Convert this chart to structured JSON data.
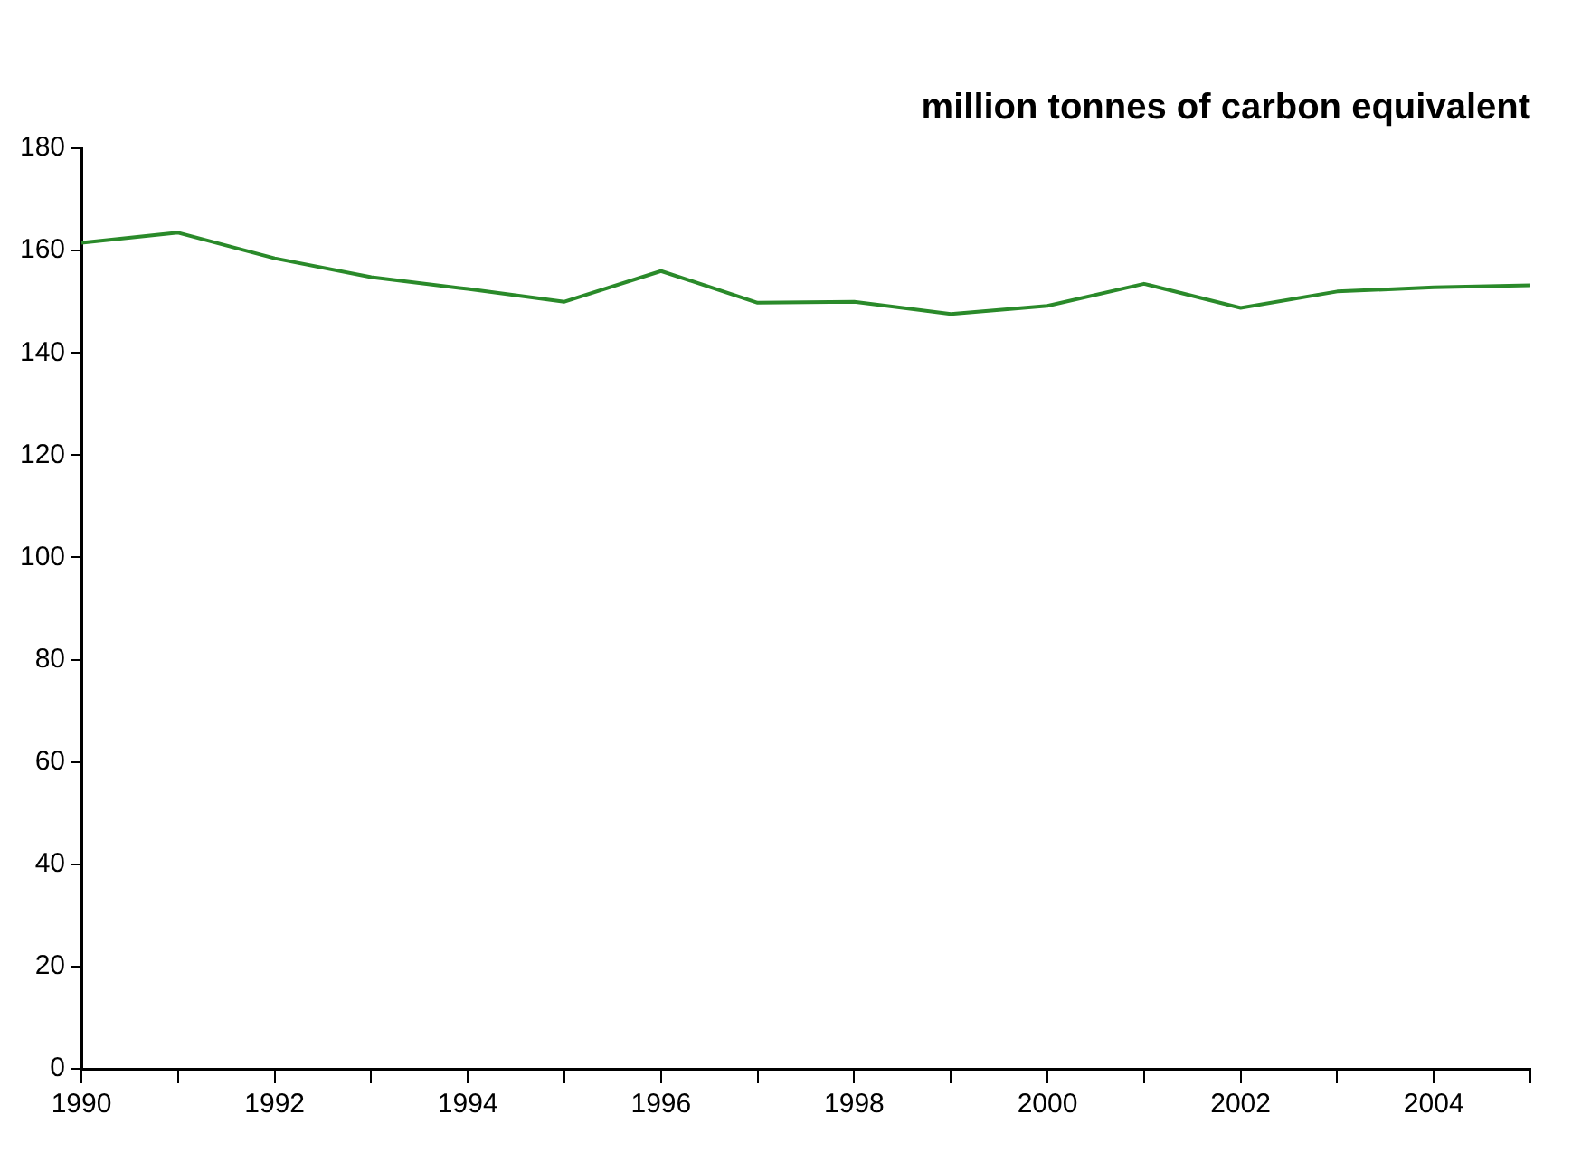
{
  "chart_data": {
    "type": "line",
    "title": "million tonnes of carbon equivalent",
    "x": [
      1990,
      1991,
      1992,
      1993,
      1994,
      1995,
      1996,
      1997,
      1998,
      1999,
      2000,
      2001,
      2002,
      2003,
      2004,
      2005
    ],
    "series": [
      {
        "color": "#2a8a2a",
        "values": [
          161.5,
          163.5,
          158.5,
          154.8,
          152.5,
          150,
          156,
          149.8,
          150,
          147.6,
          149.2,
          153.5,
          148.8,
          152,
          152.8,
          153.2
        ]
      }
    ],
    "xlim": [
      1990,
      2005
    ],
    "xticks": [
      1990,
      {
        "value": 1991,
        "label": null
      },
      1992,
      {
        "value": 1993,
        "label": null
      },
      1994,
      {
        "value": 1995,
        "label": null
      },
      1996,
      {
        "value": 1997,
        "label": null
      },
      1998,
      {
        "value": 1999,
        "label": null
      },
      2000,
      {
        "value": 2001,
        "label": null
      },
      2002,
      {
        "value": 2003,
        "label": null
      },
      2004,
      {
        "value": 2005,
        "label": null
      }
    ],
    "ylim": [
      0,
      180
    ],
    "yticks": [
      0,
      20,
      40,
      60,
      80,
      100,
      120,
      140,
      160,
      180
    ],
    "grid": false,
    "legend": false,
    "marker": "none",
    "line_style": "solid"
  }
}
